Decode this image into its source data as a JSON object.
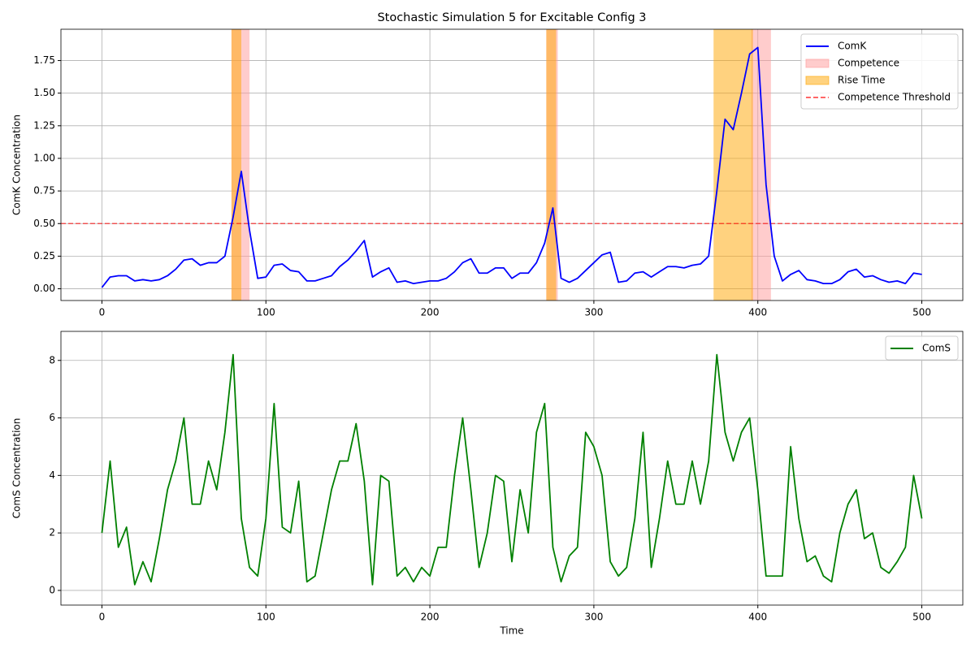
{
  "chart_data": [
    {
      "type": "line",
      "title": "Stochastic Simulation 5 for Excitable Config 3",
      "ylabel": "ComK Concentration",
      "x": [
        0,
        5,
        10,
        15,
        20,
        25,
        30,
        35,
        40,
        45,
        50,
        55,
        60,
        65,
        70,
        75,
        80,
        85,
        90,
        95,
        100,
        105,
        110,
        115,
        120,
        125,
        130,
        135,
        140,
        145,
        150,
        155,
        160,
        165,
        170,
        175,
        180,
        185,
        190,
        195,
        200,
        205,
        210,
        215,
        220,
        225,
        230,
        235,
        240,
        245,
        250,
        255,
        260,
        265,
        270,
        275,
        280,
        285,
        290,
        295,
        300,
        305,
        310,
        315,
        320,
        325,
        330,
        335,
        340,
        345,
        350,
        355,
        360,
        365,
        370,
        375,
        380,
        385,
        390,
        395,
        400,
        405,
        410,
        415,
        420,
        425,
        430,
        435,
        440,
        445,
        450,
        455,
        460,
        465,
        470,
        475,
        480,
        485,
        490,
        495,
        500
      ],
      "series": [
        {
          "name": "ComK",
          "color": "#0000ff",
          "values": [
            0.01,
            0.09,
            0.1,
            0.1,
            0.06,
            0.07,
            0.06,
            0.07,
            0.1,
            0.15,
            0.22,
            0.23,
            0.18,
            0.2,
            0.2,
            0.25,
            0.55,
            0.9,
            0.45,
            0.08,
            0.09,
            0.18,
            0.19,
            0.14,
            0.13,
            0.06,
            0.06,
            0.08,
            0.1,
            0.17,
            0.22,
            0.29,
            0.37,
            0.09,
            0.13,
            0.16,
            0.05,
            0.06,
            0.04,
            0.05,
            0.06,
            0.06,
            0.08,
            0.13,
            0.2,
            0.23,
            0.12,
            0.12,
            0.16,
            0.16,
            0.08,
            0.12,
            0.12,
            0.2,
            0.35,
            0.62,
            0.08,
            0.05,
            0.08,
            0.14,
            0.2,
            0.26,
            0.28,
            0.05,
            0.06,
            0.12,
            0.13,
            0.09,
            0.13,
            0.17,
            0.17,
            0.16,
            0.18,
            0.19,
            0.25,
            0.75,
            1.3,
            1.22,
            1.5,
            1.8,
            1.85,
            0.8,
            0.25,
            0.06,
            0.11,
            0.14,
            0.07,
            0.06,
            0.04,
            0.04,
            0.07,
            0.13,
            0.15,
            0.09,
            0.1,
            0.07,
            0.05,
            0.06,
            0.04,
            0.12,
            0.11
          ]
        }
      ],
      "bands": [
        {
          "name": "Competence",
          "color": "#ff9999",
          "ranges": [
            [
              79,
              90
            ],
            [
              271,
              278
            ],
            [
              396,
              408
            ]
          ]
        },
        {
          "name": "Rise Time",
          "color": "#ffa500",
          "ranges": [
            [
              79,
              85
            ],
            [
              271,
              277
            ],
            [
              373,
              397
            ]
          ]
        }
      ],
      "threshold": {
        "name": "Competence Threshold",
        "value": 0.5,
        "color": "#ff0000"
      },
      "xlim": [
        -25,
        525
      ],
      "xticks": [
        0,
        100,
        200,
        300,
        400,
        500
      ],
      "ylim": [
        -0.09,
        1.99
      ],
      "yticks": [
        {
          "value": 0,
          "label": "0.00"
        },
        {
          "value": 0.25,
          "label": "0.25"
        },
        {
          "value": 0.5,
          "label": "0.50"
        },
        {
          "value": 0.75,
          "label": "0.75"
        },
        {
          "value": 1,
          "label": "1.00"
        },
        {
          "value": 1.25,
          "label": "1.25"
        },
        {
          "value": 1.5,
          "label": "1.50"
        },
        {
          "value": 1.75,
          "label": "1.75"
        }
      ],
      "grid": true,
      "legend": "upper right"
    },
    {
      "type": "line",
      "xlabel": "Time",
      "ylabel": "ComS Concentration",
      "x": [
        0,
        5,
        10,
        15,
        20,
        25,
        30,
        35,
        40,
        45,
        50,
        55,
        60,
        65,
        70,
        75,
        80,
        85,
        90,
        95,
        100,
        105,
        110,
        115,
        120,
        125,
        130,
        135,
        140,
        145,
        150,
        155,
        160,
        165,
        170,
        175,
        180,
        185,
        190,
        195,
        200,
        205,
        210,
        215,
        220,
        225,
        230,
        235,
        240,
        245,
        250,
        255,
        260,
        265,
        270,
        275,
        280,
        285,
        290,
        295,
        300,
        305,
        310,
        315,
        320,
        325,
        330,
        335,
        340,
        345,
        350,
        355,
        360,
        365,
        370,
        375,
        380,
        385,
        390,
        395,
        400,
        405,
        410,
        415,
        420,
        425,
        430,
        435,
        440,
        445,
        450,
        455,
        460,
        465,
        470,
        475,
        480,
        485,
        490,
        495,
        500
      ],
      "series": [
        {
          "name": "ComS",
          "color": "#008000",
          "values": [
            2.0,
            4.5,
            1.5,
            2.2,
            0.2,
            1.0,
            0.3,
            1.8,
            3.5,
            4.5,
            6.0,
            3.0,
            3.0,
            4.5,
            3.5,
            5.5,
            8.2,
            2.5,
            0.8,
            0.5,
            2.5,
            6.5,
            2.2,
            2.0,
            3.8,
            0.3,
            0.5,
            2.0,
            3.5,
            4.5,
            4.5,
            5.8,
            3.8,
            0.2,
            4.0,
            3.8,
            0.5,
            0.8,
            0.3,
            0.8,
            0.5,
            1.5,
            1.5,
            4.0,
            6.0,
            3.5,
            0.8,
            2.0,
            4.0,
            3.8,
            1.0,
            3.5,
            2.0,
            5.5,
            6.5,
            1.5,
            0.3,
            1.2,
            1.5,
            5.5,
            5.0,
            4.0,
            1.0,
            0.5,
            0.8,
            2.5,
            5.5,
            0.8,
            2.5,
            4.5,
            3.0,
            3.0,
            4.5,
            3.0,
            4.5,
            8.2,
            5.5,
            4.5,
            5.5,
            6.0,
            3.5,
            0.5,
            0.5,
            0.5,
            5.0,
            2.5,
            1.0,
            1.2,
            0.5,
            0.3,
            2.0,
            3.0,
            3.5,
            1.8,
            2.0,
            0.8,
            0.6,
            1.0,
            1.5,
            4.0,
            2.5
          ]
        }
      ],
      "xlim": [
        -25,
        525
      ],
      "xticks": [
        0,
        100,
        200,
        300,
        400,
        500
      ],
      "ylim": [
        -0.51,
        9.01
      ],
      "yticks": [
        0,
        2,
        4,
        6,
        8
      ],
      "grid": true,
      "legend": "upper right"
    }
  ]
}
